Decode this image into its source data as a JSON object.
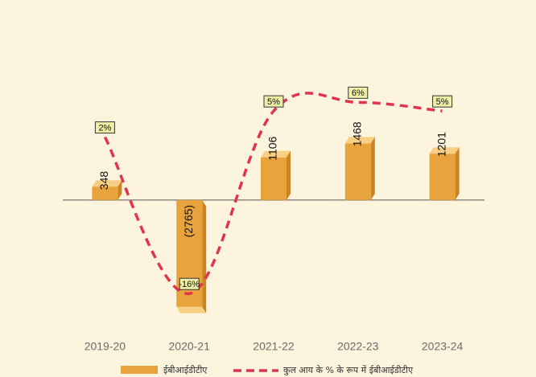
{
  "chart_data": {
    "type": "bar_line",
    "categories": [
      "2019-20",
      "2020-21",
      "2021-22",
      "2022-23",
      "2023-24"
    ],
    "series": [
      {
        "name": "ईबीआईडीटीए",
        "type": "bar",
        "color": "#e9a33d",
        "values": [
          348,
          -2765,
          1106,
          1468,
          1201
        ],
        "value_labels": [
          "348",
          "(2765)",
          "1106",
          "1468",
          "1201"
        ]
      },
      {
        "name": "कुल आय के % के रूप में ईबीआईडीटीए",
        "type": "line",
        "axis": "y2",
        "color": "#e0354a",
        "values": [
          2,
          -16,
          5,
          6,
          5
        ],
        "value_labels": [
          "2%",
          "-16%",
          "5%",
          "6%",
          "5%"
        ]
      }
    ],
    "ylim": [
      -3460,
      4560
    ],
    "y2lim": [
      -20.6,
      15
    ]
  }
}
